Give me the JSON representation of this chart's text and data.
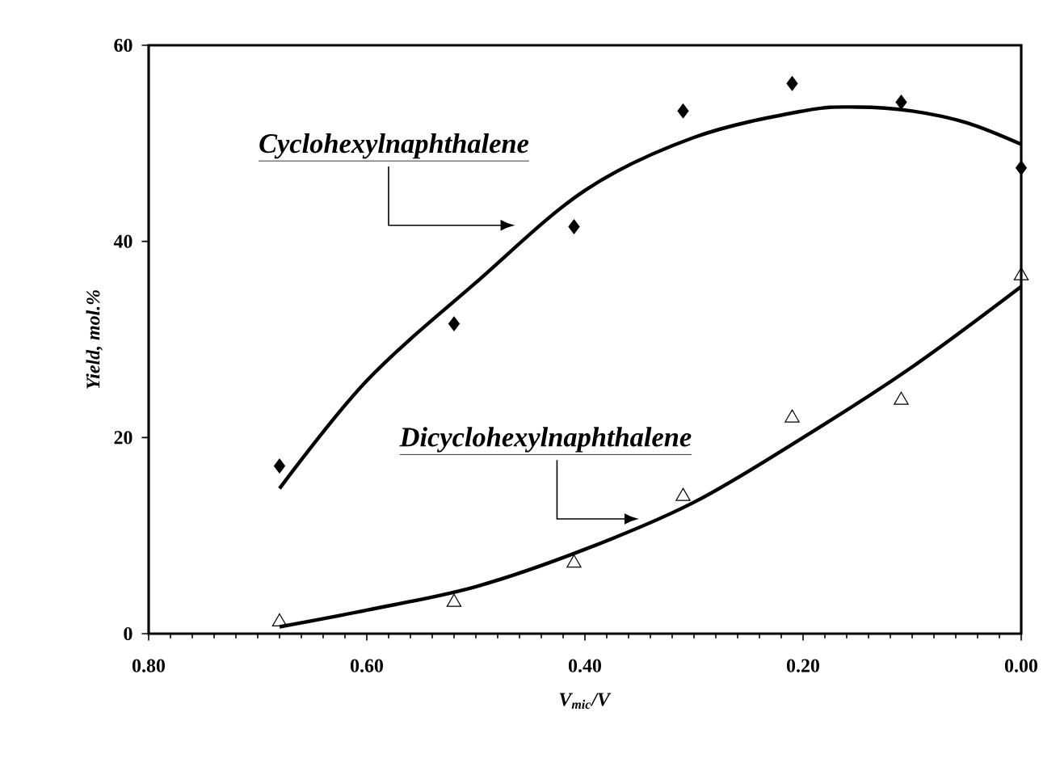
{
  "chart_data": {
    "type": "scatter",
    "xlabel": "*V$_{mic}$/V*",
    "ylabel": "*Yield, mol.%*",
    "xlim": [
      0.8,
      0.0
    ],
    "ylim": [
      0,
      60
    ],
    "xticks": [
      {
        "value": 0.8,
        "label": "0.80"
      },
      {
        "value": 0.6,
        "label": "0.60"
      },
      {
        "value": 0.4,
        "label": "0.40"
      },
      {
        "value": 0.2,
        "label": "0.20"
      },
      {
        "value": 0.0,
        "label": "0.00"
      }
    ],
    "yticks": [
      0,
      20,
      40,
      60
    ],
    "series": [
      {
        "marker": "diamond",
        "color": "#000000",
        "x": [
          0.68,
          0.52,
          0.41,
          0.31,
          0.21,
          0.11,
          0.0
        ],
        "values": [
          17.1,
          31.6,
          41.5,
          53.3,
          56.1,
          54.2,
          47.5
        ]
      },
      {
        "marker": "triangle",
        "color": "#000000",
        "x": [
          0.68,
          0.52,
          0.41,
          0.31,
          0.21,
          0.11,
          0.0
        ],
        "values": [
          1.2,
          3.2,
          7.2,
          14.0,
          22.0,
          23.8,
          36.5
        ]
      },
      {
        "type": "line",
        "marker": "none",
        "color": "#000000",
        "x": [
          0.68,
          0.6,
          0.5,
          0.4,
          0.3,
          0.2,
          0.15,
          0.1,
          0.05,
          0.0
        ],
        "values": [
          14.8,
          25.8,
          35.8,
          45.2,
          50.6,
          53.3,
          53.7,
          53.3,
          52.1,
          49.9
        ]
      },
      {
        "type": "line",
        "marker": "none",
        "color": "#000000",
        "x": [
          0.68,
          0.6,
          0.5,
          0.4,
          0.3,
          0.2,
          0.1,
          0.0
        ],
        "values": [
          0.7,
          2.4,
          4.8,
          8.6,
          13.4,
          20.0,
          27.2,
          35.4
        ]
      }
    ],
    "annotations": [
      "Cyclohexylnaphthalene",
      "Dicyclohexylnaphthalene"
    ]
  }
}
